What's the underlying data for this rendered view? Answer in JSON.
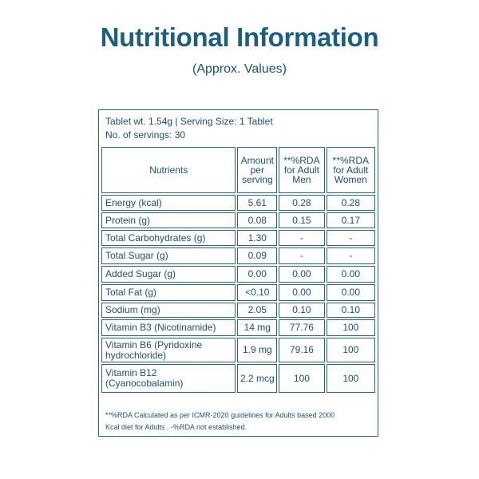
{
  "header": {
    "title": "Nutritional Information",
    "subtitle": "(Approx. Values)"
  },
  "table": {
    "info": [
      "Tablet wt. 1.54g | Serving Size: 1 Tablet",
      "No. of servings: 30"
    ],
    "columns": [
      "Nutrients",
      "Amount\nper\nserving",
      "**%RDA\nfor Adult\nMen",
      "**%RDA\nfor Adult\nWomen"
    ],
    "rows": [
      [
        "Energy (kcal)",
        "5.61",
        "0.28",
        "0.28"
      ],
      [
        "Protein (g)",
        "0.08",
        "0.15",
        "0.17"
      ],
      [
        "Total Carbohydrates (g)",
        "1.30",
        "-",
        "-"
      ],
      [
        "Total Sugar (g)",
        "0.09",
        "-",
        "-"
      ],
      [
        "Added Sugar (g)",
        "0.00",
        "0.00",
        "0.00"
      ],
      [
        "Total Fat (g)",
        "<0.10",
        "0.00",
        "0.00"
      ],
      [
        "Sodium (mg)",
        "2.05",
        "0.10",
        "0.10"
      ],
      [
        "Vitamin B3 (Nicotinamide)",
        "14 mg",
        "77.76",
        "100"
      ],
      [
        "Vitamin B6 (Pyridoxine\nhydrochloride)",
        "1.9 mg",
        "79.16",
        "100"
      ],
      [
        "Vitamin B12\n(Cyanocobalamin)",
        "2.2 mcg",
        "100",
        "100"
      ]
    ],
    "footnote": "**%RDA Calculated as per ICMR-2020 guidelines for Adults  based 2000\nKcal diet for Adults . -%RDA not established."
  }
}
